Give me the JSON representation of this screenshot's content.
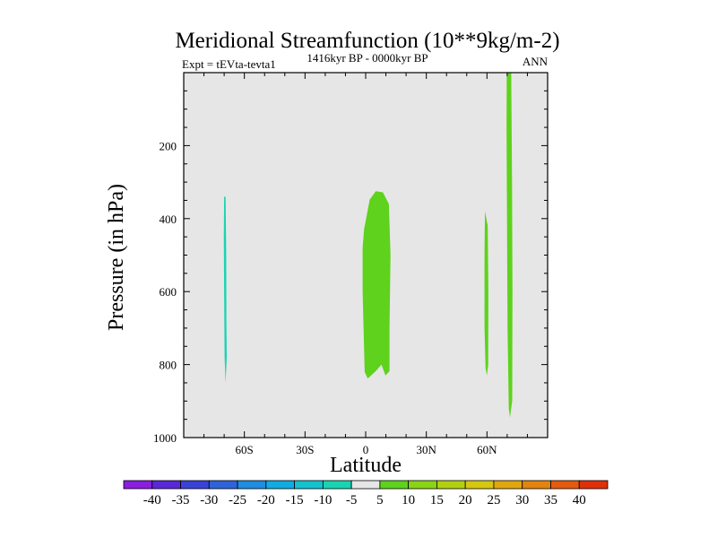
{
  "chart_data": {
    "type": "contour",
    "title": "Meridional Streamfunction (10**9kg/m-2)",
    "left_string": "Expt = tEVta-tevta1",
    "center_string": "1416kyr BP - 0000kyr BP",
    "right_string": "ANN",
    "xlabel": "Latitude",
    "ylabel": "Pressure (in hPa)",
    "xlim": [
      -90,
      90
    ],
    "ylim": [
      1000,
      0
    ],
    "x_ticks": [
      {
        "value": -60,
        "label": "60S"
      },
      {
        "value": -30,
        "label": "30S"
      },
      {
        "value": 0,
        "label": "0"
      },
      {
        "value": 30,
        "label": "30N"
      },
      {
        "value": 60,
        "label": "60N"
      }
    ],
    "y_ticks": [
      {
        "value": 200,
        "label": "200"
      },
      {
        "value": 400,
        "label": "400"
      },
      {
        "value": 600,
        "label": "600"
      },
      {
        "value": 800,
        "label": "800"
      },
      {
        "value": 1000,
        "label": "1000"
      }
    ],
    "background_color": "#e6e6e6",
    "colorbar": {
      "levels": [
        -40,
        -35,
        -30,
        -25,
        -20,
        -15,
        -10,
        -5,
        5,
        10,
        15,
        20,
        25,
        30,
        35,
        40
      ],
      "labels": [
        "-40",
        "-35",
        "-30",
        "-25",
        "-20",
        "-15",
        "-10",
        "-5",
        "5",
        "10",
        "15",
        "20",
        "25",
        "30",
        "35",
        "40"
      ],
      "colors": [
        "#8a1fe0",
        "#5a28d8",
        "#3a42d6",
        "#2e64da",
        "#1f8ee0",
        "#10abe0",
        "#14c2cf",
        "#18d4b2",
        "#e6e6e6",
        "#5ed21c",
        "#8ad414",
        "#b2d010",
        "#d6c80e",
        "#e0a80e",
        "#e4840e",
        "#e45a0e",
        "#e0300a"
      ]
    },
    "regions": [
      {
        "name": "cell-60s",
        "value": -7.5,
        "color": "#18d4b2",
        "polygon": [
          [
            -70.0,
            340
          ],
          [
            -69.3,
            340
          ],
          [
            -69.0,
            500
          ],
          [
            -68.9,
            680
          ],
          [
            -68.7,
            780
          ],
          [
            -69.3,
            850
          ],
          [
            -69.8,
            780
          ],
          [
            -70.0,
            600
          ],
          [
            -70.2,
            450
          ]
        ]
      },
      {
        "name": "cell-equator",
        "value": 7.5,
        "color": "#5ed21c",
        "polygon": [
          [
            -0.8,
            430
          ],
          [
            2.0,
            348
          ],
          [
            5.0,
            325
          ],
          [
            8.5,
            328
          ],
          [
            11.5,
            360
          ],
          [
            12.3,
            500
          ],
          [
            11.8,
            700
          ],
          [
            11.8,
            818
          ],
          [
            9.8,
            830
          ],
          [
            7.8,
            800
          ],
          [
            5.0,
            818
          ],
          [
            1.0,
            838
          ],
          [
            -0.5,
            820
          ],
          [
            -1.5,
            600
          ],
          [
            -1.5,
            480
          ]
        ]
      },
      {
        "name": "cell-60n",
        "value": 7.5,
        "color": "#5ed21c",
        "polygon": [
          [
            59.0,
            380
          ],
          [
            60.4,
            420
          ],
          [
            60.7,
            600
          ],
          [
            60.6,
            800
          ],
          [
            60.0,
            830
          ],
          [
            59.3,
            810
          ],
          [
            58.8,
            700
          ],
          [
            58.8,
            500
          ]
        ]
      },
      {
        "name": "cell-70n",
        "value": 7.5,
        "color": "#5ed21c",
        "polygon": [
          [
            69.8,
            0
          ],
          [
            72.0,
            0
          ],
          [
            72.4,
            300
          ],
          [
            72.6,
            600
          ],
          [
            72.5,
            900
          ],
          [
            71.4,
            945
          ],
          [
            70.8,
            920
          ],
          [
            70.2,
            700
          ],
          [
            69.9,
            400
          ],
          [
            69.7,
            150
          ]
        ]
      }
    ]
  }
}
